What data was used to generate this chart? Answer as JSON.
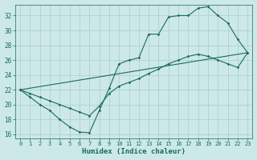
{
  "title": "",
  "xlabel": "Humidex (Indice chaleur)",
  "bg_color": "#cce8e8",
  "grid_color": "#aacccc",
  "line_color": "#1a6b5a",
  "xlim": [
    -0.5,
    23.5
  ],
  "ylim": [
    15.5,
    33.5
  ],
  "xticks": [
    0,
    1,
    2,
    3,
    4,
    5,
    6,
    7,
    8,
    9,
    10,
    11,
    12,
    13,
    14,
    15,
    16,
    17,
    18,
    19,
    20,
    21,
    22,
    23
  ],
  "yticks": [
    16,
    18,
    20,
    22,
    24,
    26,
    28,
    30,
    32
  ],
  "series1_x": [
    0,
    1,
    2,
    3,
    4,
    5,
    6,
    7,
    8,
    9,
    10,
    11,
    12,
    13,
    14,
    15,
    16,
    17,
    18,
    19,
    20,
    21,
    22,
    23
  ],
  "series1_y": [
    22.0,
    21.0,
    20.0,
    19.2,
    18.0,
    17.0,
    16.3,
    16.2,
    19.2,
    22.2,
    25.5,
    26.0,
    26.3,
    29.5,
    29.5,
    31.8,
    32.0,
    32.0,
    33.0,
    33.2,
    32.0,
    31.0,
    28.8,
    27.0
  ],
  "series2_x": [
    0,
    1,
    2,
    3,
    4,
    5,
    6,
    7,
    8,
    9,
    10,
    11,
    12,
    13,
    14,
    15,
    16,
    17,
    18,
    19,
    20,
    21,
    22,
    23
  ],
  "series2_y": [
    22.0,
    21.5,
    21.0,
    20.5,
    20.0,
    19.5,
    19.0,
    18.5,
    19.8,
    21.5,
    22.5,
    23.0,
    23.5,
    24.2,
    24.8,
    25.5,
    26.0,
    26.5,
    26.8,
    26.5,
    26.0,
    25.5,
    25.0,
    27.0
  ],
  "series3_x": [
    0,
    23
  ],
  "series3_y": [
    22.0,
    27.0
  ]
}
